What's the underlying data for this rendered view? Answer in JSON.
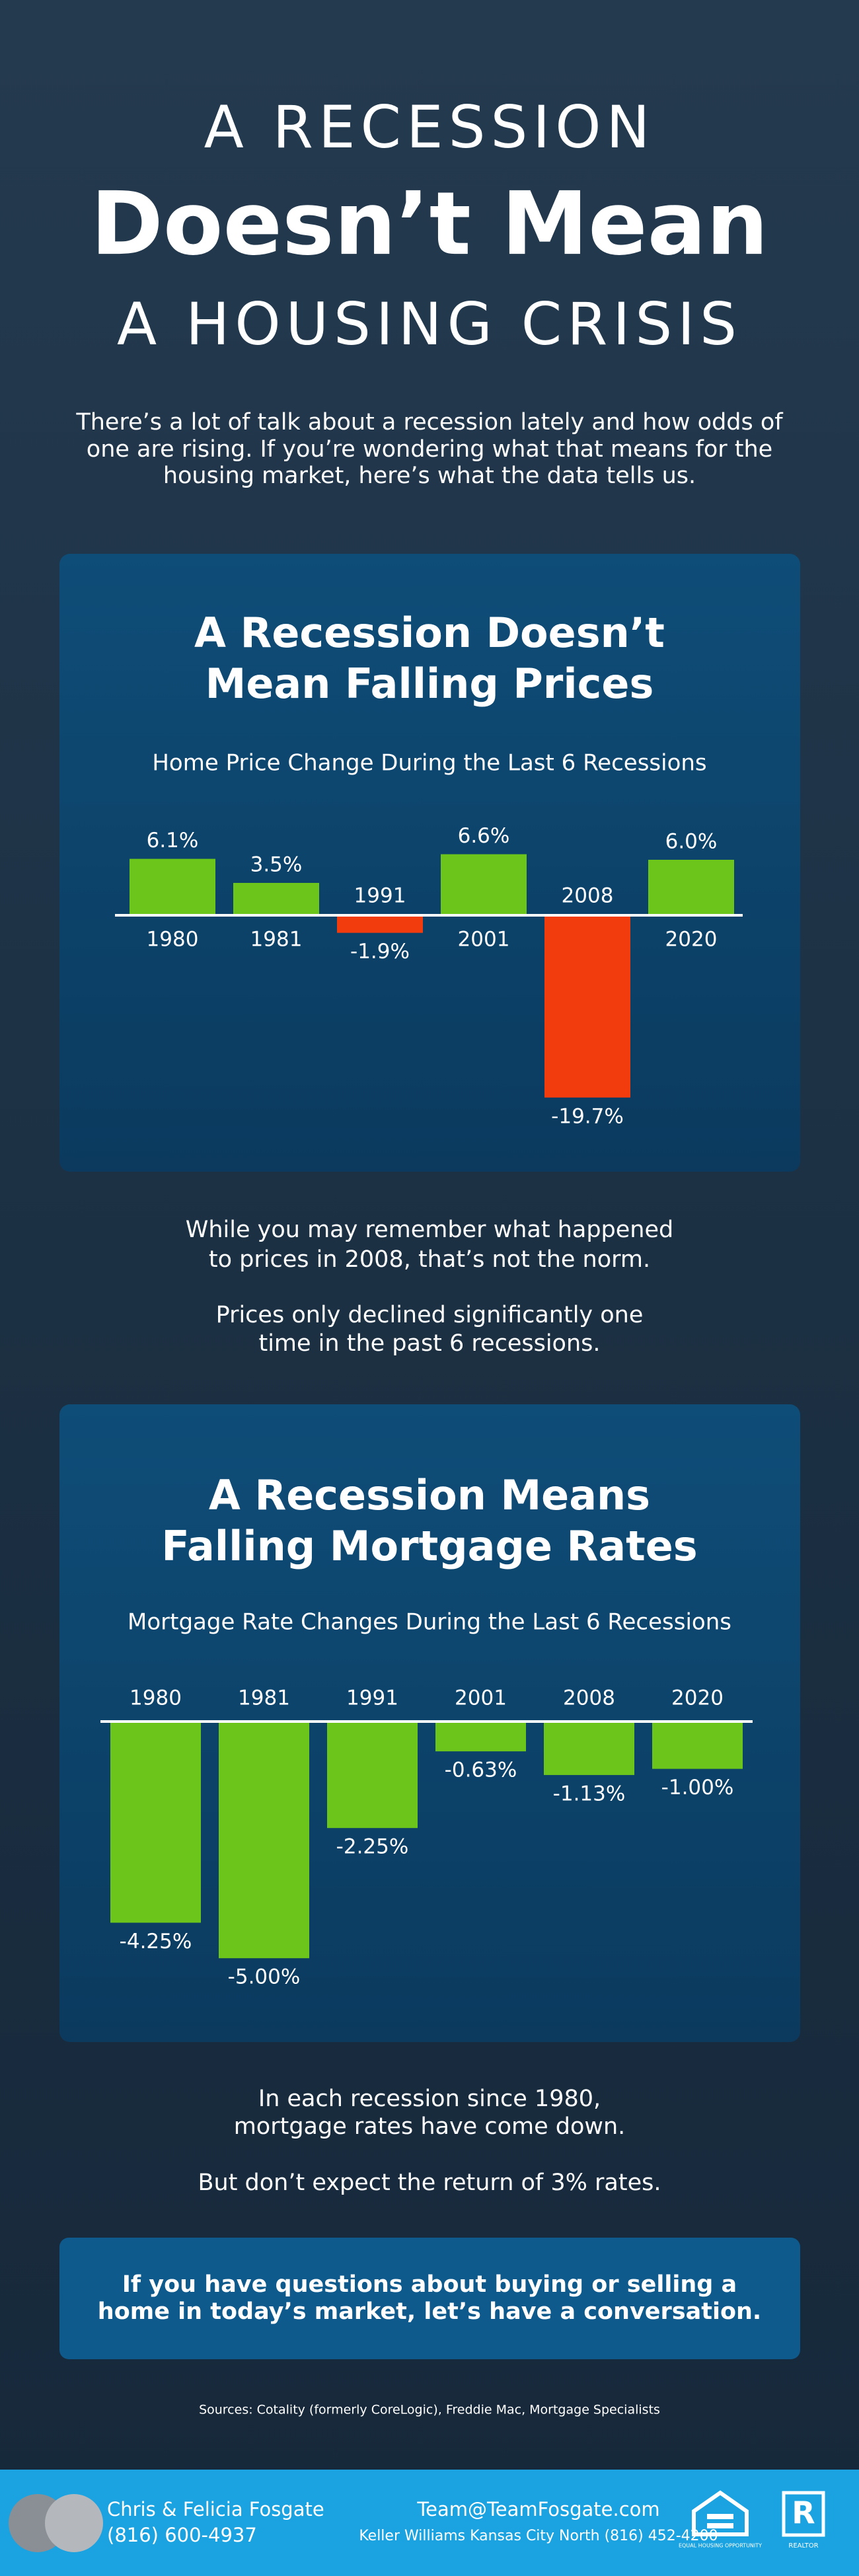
{
  "header": {
    "line1": "A RECESSION",
    "line2": "Doesn’t Mean",
    "line3": "A HOUSING CRISIS"
  },
  "intro": [
    "There’s a lot of talk about a recession lately and how odds of",
    "one are rising. If you’re wondering what that means for the",
    "housing market, here’s what the data tells us."
  ],
  "chart_data": [
    {
      "type": "bar",
      "title": [
        "A Recession Doesn’t",
        "Mean Falling Prices"
      ],
      "subtitle": "Home Price Change During the Last 6 Recessions",
      "categories": [
        "1980",
        "1981",
        "1991",
        "2001",
        "2008",
        "2020"
      ],
      "values": [
        6.1,
        3.5,
        -1.9,
        6.6,
        -19.7,
        6.0
      ],
      "value_labels": [
        "6.1%",
        "3.5%",
        "-1.9%",
        "6.6%",
        "-19.7%",
        "6.0%"
      ],
      "colors": [
        "#6cc51a",
        "#6cc51a",
        "#f23c0d",
        "#6cc51a",
        "#f23c0d",
        "#6cc51a"
      ],
      "ylim": [
        -20,
        7
      ]
    },
    {
      "type": "bar",
      "title": [
        "A Recession Means",
        "Falling Mortgage Rates"
      ],
      "subtitle": "Mortgage Rate Changes During the Last 6 Recessions",
      "categories": [
        "1980",
        "1981",
        "1991",
        "2001",
        "2008",
        "2020"
      ],
      "values": [
        -4.25,
        -5.0,
        -2.25,
        -0.63,
        -1.13,
        -1.0
      ],
      "value_labels": [
        "-4.25%",
        "-5.00%",
        "-2.25%",
        "-0.63%",
        "-1.13%",
        "-1.00%"
      ],
      "color": "#6cc51a",
      "ylim": [
        -5.5,
        0
      ]
    }
  ],
  "note1": [
    [
      "While you may remember what happened",
      "to prices in 2008, that’s not the norm."
    ],
    [
      "Prices only declined significantly one",
      "time in the past 6 recessions."
    ]
  ],
  "note2": [
    [
      "In each recession since 1980,",
      "mortgage rates have come down."
    ],
    [
      "But don’t expect the return of 3% rates."
    ]
  ],
  "cta": [
    "If you have questions about buying or selling a",
    "home in today’s market, let’s have a conversation."
  ],
  "sources": "Sources: Cotality (formerly CoreLogic), Freddie Mac, Mortgage Specialists",
  "footer": {
    "names": "Chris & Felicia Fosgate",
    "phone": "(816) 600-4937",
    "email": "Team@TeamFosgate.com",
    "office": "Keller Williams Kansas City North (816) 452-4200",
    "eho": "EQUAL HOUSING OPPORTUNITY",
    "realtor": "REALTOR"
  }
}
